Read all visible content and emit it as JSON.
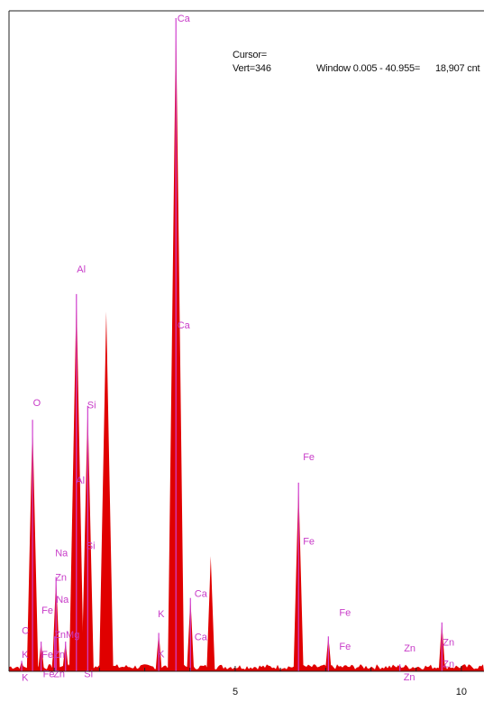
{
  "header": {
    "cursor_label": "Cursor=",
    "vert_label": "Vert=346",
    "window_label": "Window 0.005 - 40.955=",
    "count_label": "18,907 cnt"
  },
  "colors": {
    "fill": "#e00000",
    "peak_line": "#d040d0",
    "label": "#c83cc8",
    "axis": "#222222"
  },
  "chart_data": {
    "type": "area",
    "title": "",
    "xlabel": "",
    "ylabel": "",
    "xlim": [
      0,
      10.5
    ],
    "ylim": [
      0,
      18907
    ],
    "x_ticks": [
      5,
      10
    ],
    "grid": false,
    "peaks": [
      {
        "element": "C",
        "x": 0.28,
        "y": 300
      },
      {
        "element": "O",
        "x": 0.52,
        "y": 7200
      },
      {
        "element": "Fe",
        "x": 0.71,
        "y": 850
      },
      {
        "element": "Zn",
        "x": 1.01,
        "y": 1000
      },
      {
        "element": "Na",
        "x": 1.04,
        "y": 2700
      },
      {
        "element": "Mg",
        "x": 1.25,
        "y": 850
      },
      {
        "element": "Al",
        "x": 1.49,
        "y": 10800
      },
      {
        "element": "Si",
        "x": 1.74,
        "y": 7600
      },
      {
        "element": "",
        "x": 2.15,
        "y": 10300
      },
      {
        "element": "K",
        "x": 3.31,
        "y": 1100
      },
      {
        "element": "Ca",
        "x": 3.69,
        "y": 18700
      },
      {
        "element": "Ca",
        "x": 4.01,
        "y": 2100
      },
      {
        "element": "",
        "x": 4.46,
        "y": 3300
      },
      {
        "element": "Fe",
        "x": 6.4,
        "y": 5400
      },
      {
        "element": "Fe",
        "x": 7.06,
        "y": 1000
      },
      {
        "element": "Zn",
        "x": 8.64,
        "y": 200
      },
      {
        "element": "Zn",
        "x": 9.57,
        "y": 1400
      }
    ],
    "labels": [
      {
        "text": "Ca",
        "x": 3.72,
        "y": 18880
      },
      {
        "text": "Ca",
        "x": 3.72,
        "y": 10100
      },
      {
        "text": "Al",
        "x": 1.5,
        "y": 11700
      },
      {
        "text": "Al",
        "x": 1.48,
        "y": 5660
      },
      {
        "text": "O",
        "x": 0.53,
        "y": 7880
      },
      {
        "text": "Si",
        "x": 1.73,
        "y": 7810
      },
      {
        "text": "Si",
        "x": 1.71,
        "y": 3780
      },
      {
        "text": "Na",
        "x": 1.02,
        "y": 3580
      },
      {
        "text": "Zn",
        "x": 1.02,
        "y": 2880
      },
      {
        "text": "Na",
        "x": 1.04,
        "y": 2250
      },
      {
        "text": "Fe",
        "x": 0.72,
        "y": 1940
      },
      {
        "text": "ZnMg",
        "x": 1.0,
        "y": 1240
      },
      {
        "text": "C",
        "x": 0.28,
        "y": 1350
      },
      {
        "text": "K",
        "x": 0.28,
        "y": 670
      },
      {
        "text": "Fe",
        "x": 0.72,
        "y": 670
      },
      {
        "text": "Fe",
        "x": 0.75,
        "y": 120
      },
      {
        "text": "K",
        "x": 0.28,
        "y": 10
      },
      {
        "text": "Zn",
        "x": 0.98,
        "y": 670
      },
      {
        "text": "Zn",
        "x": 0.98,
        "y": 120
      },
      {
        "text": "Si",
        "x": 1.66,
        "y": 120
      },
      {
        "text": "K",
        "x": 3.29,
        "y": 1840
      },
      {
        "text": "K",
        "x": 3.29,
        "y": 690
      },
      {
        "text": "Ca",
        "x": 4.1,
        "y": 2420
      },
      {
        "text": "Ca",
        "x": 4.1,
        "y": 1170
      },
      {
        "text": "Fe",
        "x": 6.5,
        "y": 6330
      },
      {
        "text": "Fe",
        "x": 6.5,
        "y": 3910
      },
      {
        "text": "Fe",
        "x": 7.3,
        "y": 1870
      },
      {
        "text": "Fe",
        "x": 7.3,
        "y": 900
      },
      {
        "text": "Zn",
        "x": 8.73,
        "y": 850
      },
      {
        "text": "Zn",
        "x": 8.72,
        "y": 20
      },
      {
        "text": "Zn",
        "x": 9.59,
        "y": 1020
      },
      {
        "text": "Zn",
        "x": 9.59,
        "y": 400
      }
    ]
  }
}
